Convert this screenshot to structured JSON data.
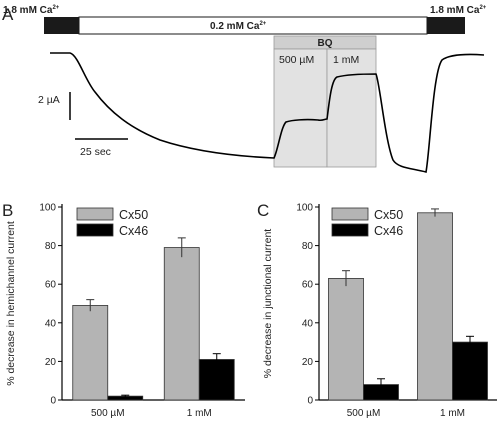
{
  "panel_a": {
    "letter": "A",
    "solution_left": "1.8 mM Ca",
    "solution_mid": "0.2 mM Ca",
    "solution_right": "1.8 mM Ca",
    "superscript": "2+",
    "bq_label": "BQ",
    "bq_conc_1": "500 µM",
    "bq_conc_2": "1 mM",
    "scale_current": "2 µA",
    "scale_time": "25 sec"
  },
  "chart_data": [
    {
      "type": "bar",
      "panel": "B",
      "categories": [
        "500 µM",
        "1 mM"
      ],
      "series": [
        {
          "name": "Cx50",
          "values": [
            49,
            79
          ],
          "errors": [
            3,
            5
          ],
          "color": "#b4b4b4"
        },
        {
          "name": "Cx46",
          "values": [
            2,
            21
          ],
          "errors": [
            0.5,
            3
          ],
          "color": "#000000"
        }
      ],
      "ylabel": "% decrease in hemichannel current",
      "yticks": [
        0,
        20,
        40,
        60,
        80,
        100
      ],
      "ylim": [
        0,
        100
      ]
    },
    {
      "type": "bar",
      "panel": "C",
      "categories": [
        "500 µM",
        "1 mM"
      ],
      "series": [
        {
          "name": "Cx50",
          "values": [
            63,
            97
          ],
          "errors": [
            4,
            2
          ],
          "color": "#b4b4b4"
        },
        {
          "name": "Cx46",
          "values": [
            8,
            30
          ],
          "errors": [
            3,
            3
          ],
          "color": "#000000"
        }
      ],
      "ylabel": "% decrease in junctional current",
      "yticks": [
        0,
        20,
        40,
        60,
        80,
        100
      ],
      "ylim": [
        0,
        100
      ]
    }
  ]
}
